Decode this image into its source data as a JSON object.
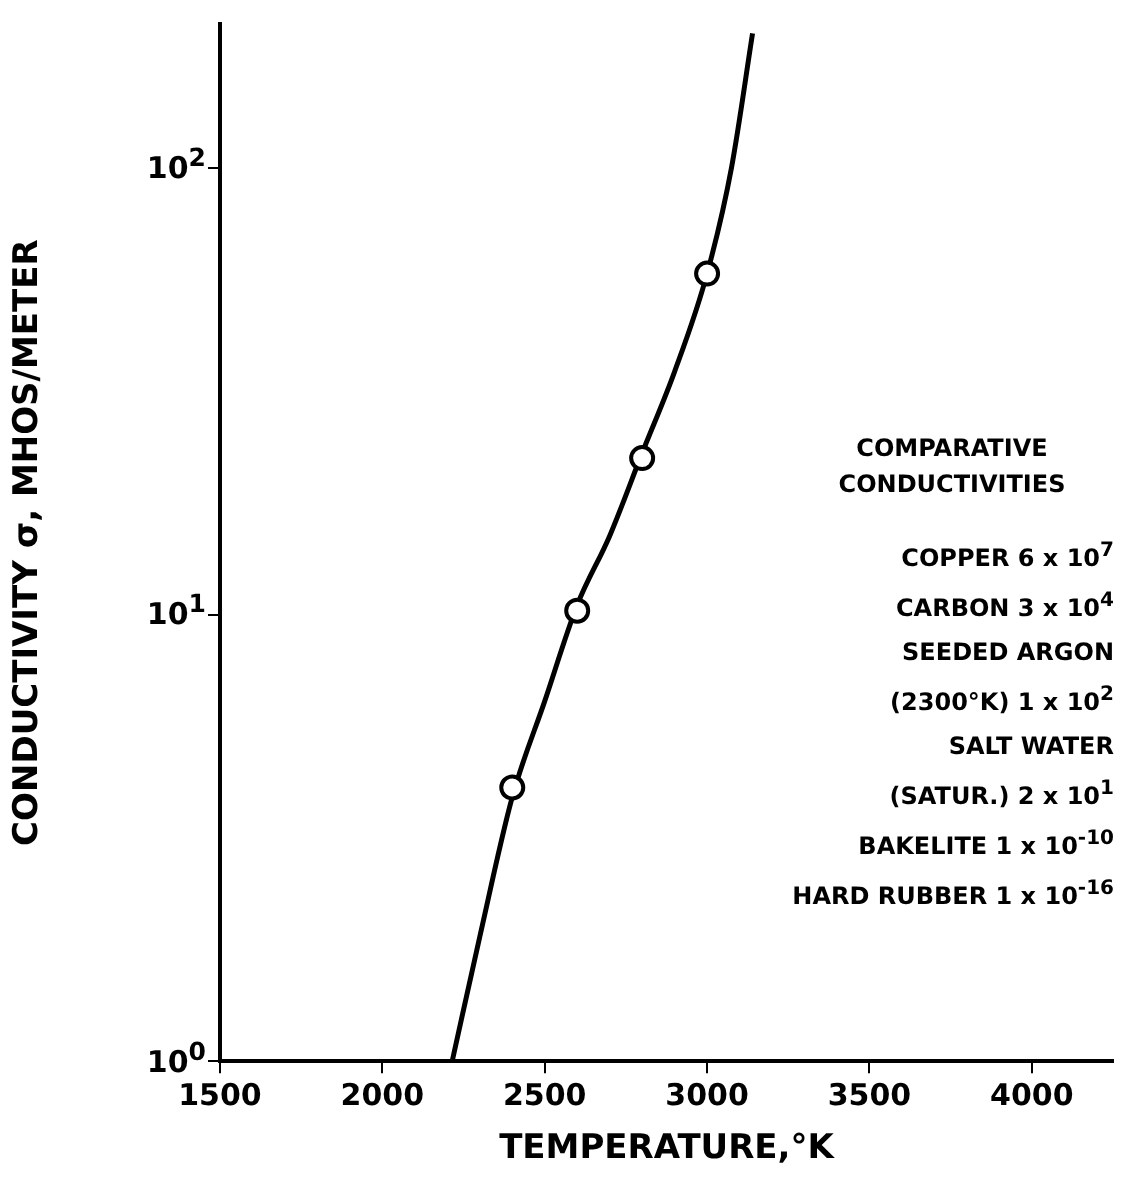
{
  "chart_data": {
    "type": "line",
    "xlabel": "TEMPERATURE,°K",
    "ylabel": "CONDUCTIVITY σ, MHOS/METER",
    "log": "y",
    "xlim": [
      1500,
      4250
    ],
    "xticks": [
      1500,
      2000,
      2500,
      3000,
      3500,
      4000
    ],
    "ylim": [
      1,
      210
    ],
    "yticks": [
      {
        "value": 1,
        "label": "10$^{0}$"
      },
      {
        "value": 10,
        "label": "10$^{1}$"
      },
      {
        "value": 100,
        "label": "10$^{2}$"
      }
    ],
    "series": [
      {
        "color": "#000000",
        "marker": "none",
        "x": [
          2215,
          2300,
          2400,
          2500,
          2600,
          2700,
          2800,
          2900,
          3000,
          3075,
          3140
        ],
        "values": [
          1,
          1.9,
          3.9,
          6.4,
          10.5,
          15,
          23,
          35,
          58,
          100,
          200
        ]
      },
      {
        "type": "scatter",
        "color": "#000000",
        "marker": "circle",
        "x": [
          2400,
          2600,
          2800,
          3000
        ],
        "values": [
          4.1,
          10.2,
          22.4,
          58
        ]
      }
    ],
    "annotations": [
      "COMPARATIVE CONDUCTIVITIES",
      "COPPER 6 x 10$^{7}$",
      "CARBON 3 x 10$^{4}$",
      "SEEDED ARGON",
      "(2300°K) 1 x 10$^{2}$",
      "SALT WATER",
      "(SATUR.) 2 x 10$^{1}$",
      "BAKELITE 1 x 10$^{-10}$",
      "HARD RUBBER 1 x 10$^{-16}$"
    ]
  }
}
